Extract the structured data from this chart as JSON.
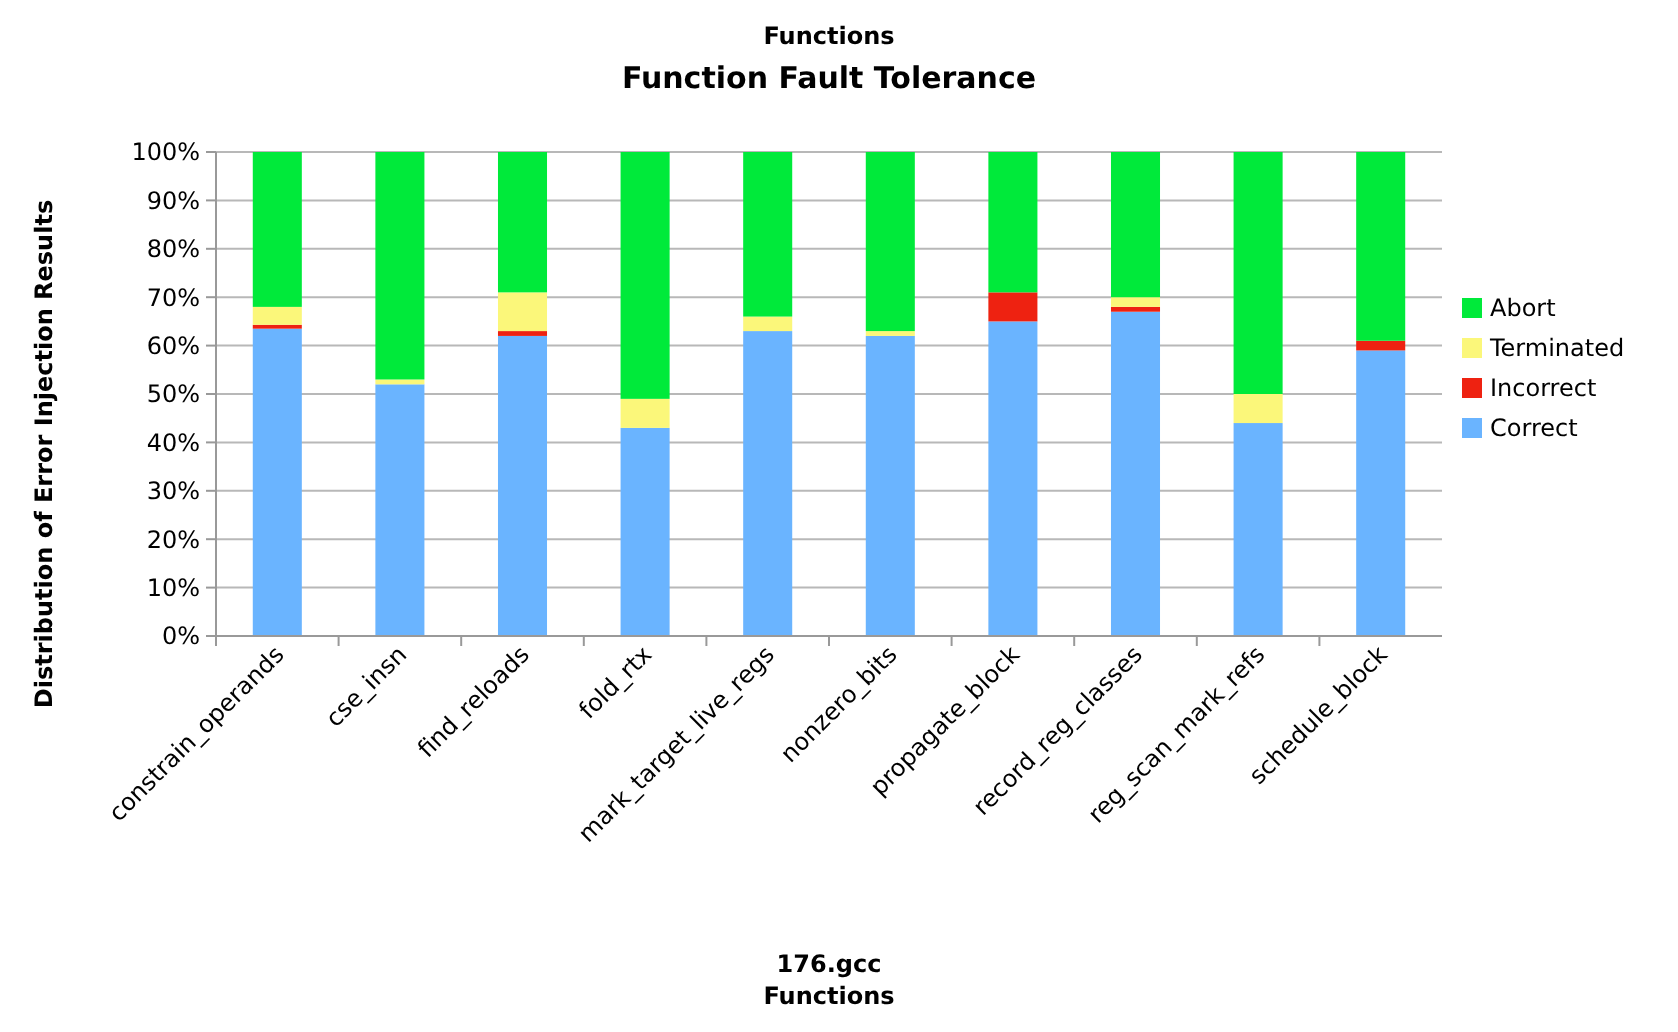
{
  "chart_data": {
    "type": "bar",
    "title": "Function Fault Tolerance",
    "ylabel": "Distribution of Error Injection Results",
    "annotations": [
      "Functions",
      "176.gcc",
      "Functions"
    ],
    "categories": [
      "constrain_operands",
      "cse_insn",
      "find_reloads",
      "fold_rtx",
      "mark_target_live_regs",
      "nonzero_bits",
      "propagate_block",
      "record_reg_classes",
      "reg_scan_mark_refs",
      "schedule_block"
    ],
    "stacked": true,
    "series": [
      {
        "name": "Correct",
        "color": "#6ab4ff",
        "values": [
          63.5,
          52,
          62,
          43,
          63,
          62,
          65,
          67,
          44,
          59
        ]
      },
      {
        "name": "Incorrect",
        "color": "#ee2211",
        "values": [
          0.8,
          0,
          1,
          0,
          0,
          0,
          6,
          1,
          0,
          2
        ]
      },
      {
        "name": "Terminated",
        "color": "#fbf77a",
        "values": [
          3.7,
          1,
          8,
          6,
          3,
          1,
          0,
          2,
          6,
          0
        ]
      },
      {
        "name": "Abort",
        "color": "#00ea3a",
        "values": [
          32,
          47,
          29,
          51,
          34,
          37,
          29,
          30,
          50,
          39
        ]
      }
    ],
    "ylim": [
      0,
      100
    ],
    "yticks": [
      {
        "value": 0,
        "label": "0%"
      },
      {
        "value": 10,
        "label": "10%"
      },
      {
        "value": 20,
        "label": "20%"
      },
      {
        "value": 30,
        "label": "30%"
      },
      {
        "value": 40,
        "label": "40%"
      },
      {
        "value": 50,
        "label": "50%"
      },
      {
        "value": 60,
        "label": "60%"
      },
      {
        "value": 70,
        "label": "70%"
      },
      {
        "value": 80,
        "label": "80%"
      },
      {
        "value": 90,
        "label": "90%"
      },
      {
        "value": 100,
        "label": "100%"
      }
    ],
    "grid": "y",
    "legend": "right"
  }
}
